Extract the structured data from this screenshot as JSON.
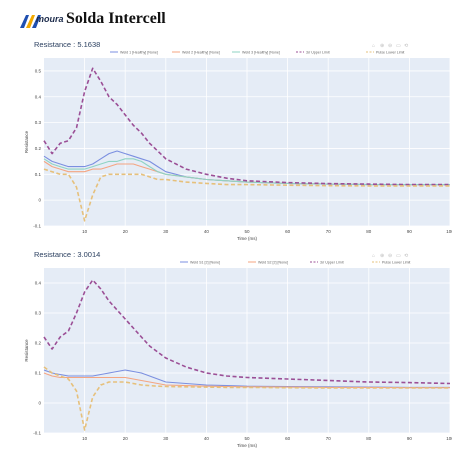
{
  "header": {
    "logo_text": "moura",
    "title": "Solda Intercell"
  },
  "chart_data": [
    {
      "type": "line",
      "title": "Resistance : 5.1638",
      "xlabel": "Time (ms)",
      "ylabel": "Resistance",
      "xlim": [
        0,
        100
      ],
      "ylim": [
        -0.1,
        0.55
      ],
      "x_ticks": [
        10,
        20,
        30,
        40,
        50,
        60,
        70,
        80,
        90,
        100
      ],
      "y_ticks": [
        -0.1,
        0,
        0.1,
        0.2,
        0.3,
        0.4,
        0.5
      ],
      "legend": [
        "Weld 1 [Healthy] [None]",
        "Weld 2 [Healthy] [None]",
        "Weld 3 [Healthy] [None]",
        "3σ Upper Limit",
        "Pulse Lower Limit"
      ],
      "legend_placement": "top",
      "x": [
        0,
        2,
        4,
        6,
        8,
        10,
        12,
        14,
        16,
        18,
        20,
        22,
        24,
        26,
        28,
        30,
        35,
        40,
        45,
        50,
        60,
        70,
        80,
        90,
        100
      ],
      "series": [
        {
          "name": "Weld 1 [Healthy] [None]",
          "color": "#7b8fe0",
          "values": [
            0.17,
            0.15,
            0.14,
            0.13,
            0.13,
            0.13,
            0.14,
            0.16,
            0.18,
            0.19,
            0.18,
            0.17,
            0.16,
            0.15,
            0.13,
            0.11,
            0.09,
            0.08,
            0.075,
            0.07,
            0.065,
            0.062,
            0.06,
            0.06,
            0.06
          ]
        },
        {
          "name": "Weld 2 [Healthy] [None]",
          "color": "#f4a582",
          "values": [
            0.15,
            0.13,
            0.12,
            0.11,
            0.11,
            0.11,
            0.12,
            0.12,
            0.13,
            0.14,
            0.14,
            0.14,
            0.13,
            0.12,
            0.11,
            0.1,
            0.09,
            0.08,
            0.075,
            0.07,
            0.065,
            0.062,
            0.06,
            0.06,
            0.06
          ]
        },
        {
          "name": "Weld 3 [Healthy] [None]",
          "color": "#8fd3c3",
          "values": [
            0.16,
            0.14,
            0.13,
            0.12,
            0.12,
            0.12,
            0.13,
            0.14,
            0.15,
            0.15,
            0.16,
            0.16,
            0.15,
            0.13,
            0.11,
            0.1,
            0.09,
            0.08,
            0.075,
            0.07,
            0.065,
            0.062,
            0.06,
            0.06,
            0.06
          ]
        },
        {
          "name": "3σ Upper Limit",
          "color": "#9b4f96",
          "dash": true,
          "values": [
            0.23,
            0.18,
            0.22,
            0.23,
            0.28,
            0.42,
            0.51,
            0.46,
            0.4,
            0.37,
            0.33,
            0.29,
            0.26,
            0.22,
            0.19,
            0.16,
            0.12,
            0.1,
            0.085,
            0.075,
            0.068,
            0.064,
            0.062,
            0.06,
            0.06
          ]
        },
        {
          "name": "Pulse Lower Limit",
          "color": "#e6c07b",
          "dash": true,
          "values": [
            0.12,
            0.11,
            0.1,
            0.1,
            0.05,
            -0.08,
            0.02,
            0.09,
            0.1,
            0.1,
            0.1,
            0.1,
            0.1,
            0.09,
            0.08,
            0.08,
            0.07,
            0.065,
            0.06,
            0.06,
            0.058,
            0.056,
            0.055,
            0.055,
            0.055
          ]
        }
      ]
    },
    {
      "type": "line",
      "title": "Resistance : 3.0014",
      "xlabel": "Time (ms)",
      "ylabel": "Resistance",
      "xlim": [
        0,
        100
      ],
      "ylim": [
        -0.1,
        0.45
      ],
      "x_ticks": [
        10,
        20,
        30,
        40,
        50,
        60,
        70,
        80,
        90,
        100
      ],
      "y_ticks": [
        -0.1,
        0,
        0.1,
        0.2,
        0.3,
        0.4
      ],
      "legend": [
        "Weld S1 [2] [None]",
        "Weld S2 [2] [None]",
        "3σ Upper Limit",
        "Pulse Lower Limit"
      ],
      "legend_placement": "top",
      "x": [
        0,
        2,
        4,
        6,
        8,
        10,
        12,
        14,
        16,
        18,
        20,
        22,
        24,
        26,
        28,
        30,
        35,
        40,
        45,
        50,
        60,
        70,
        80,
        90,
        100
      ],
      "series": [
        {
          "name": "Weld S1 [2] [None]",
          "color": "#7b8fe0",
          "values": [
            0.11,
            0.1,
            0.095,
            0.09,
            0.09,
            0.09,
            0.09,
            0.095,
            0.1,
            0.105,
            0.11,
            0.105,
            0.1,
            0.09,
            0.08,
            0.07,
            0.065,
            0.06,
            0.058,
            0.056,
            0.055,
            0.054,
            0.053,
            0.052,
            0.052
          ]
        },
        {
          "name": "Weld S2 [2] [None]",
          "color": "#f4a582",
          "values": [
            0.1,
            0.09,
            0.085,
            0.085,
            0.085,
            0.085,
            0.085,
            0.085,
            0.085,
            0.085,
            0.085,
            0.08,
            0.075,
            0.07,
            0.065,
            0.06,
            0.058,
            0.056,
            0.055,
            0.054,
            0.053,
            0.052,
            0.052,
            0.051,
            0.051
          ]
        },
        {
          "name": "3σ Upper Limit",
          "color": "#9b4f96",
          "dash": true,
          "values": [
            0.22,
            0.18,
            0.22,
            0.24,
            0.3,
            0.37,
            0.41,
            0.38,
            0.34,
            0.31,
            0.28,
            0.25,
            0.22,
            0.19,
            0.17,
            0.15,
            0.12,
            0.1,
            0.09,
            0.085,
            0.08,
            0.075,
            0.07,
            0.068,
            0.065
          ]
        },
        {
          "name": "Pulse Lower Limit",
          "color": "#e6c07b",
          "dash": true,
          "values": [
            0.12,
            0.1,
            0.09,
            0.08,
            0.04,
            -0.09,
            0.02,
            0.06,
            0.07,
            0.07,
            0.07,
            0.065,
            0.06,
            0.058,
            0.056,
            0.055,
            0.054,
            0.053,
            0.052,
            0.052,
            0.051,
            0.05,
            0.05,
            0.05,
            0.05
          ]
        }
      ]
    }
  ]
}
